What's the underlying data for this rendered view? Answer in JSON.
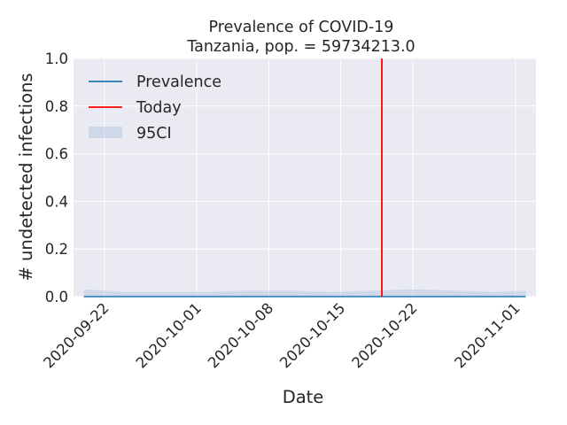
{
  "chart_data": {
    "type": "line",
    "title_line1": "Prevalence of COVID-19",
    "title_line2": "Tanzania, pop. = 59734213.0",
    "xlabel": "Date",
    "ylabel": "# undetected infections",
    "ylim": [
      0,
      1
    ],
    "yticks": [
      0.0,
      0.2,
      0.4,
      0.6,
      0.8,
      1.0
    ],
    "ytick_labels": [
      "0.0",
      "0.2",
      "0.4",
      "0.6",
      "0.8",
      "1.0"
    ],
    "xlim": [
      "2020-09-19",
      "2020-11-03"
    ],
    "xticks": [
      "2020-09-22",
      "2020-10-01",
      "2020-10-08",
      "2020-10-15",
      "2020-10-22",
      "2020-11-01"
    ],
    "xtick_labels": [
      "2020-09-22",
      "2020-10-01",
      "2020-10-08",
      "2020-10-15",
      "2020-10-22",
      "2020-11-01"
    ],
    "grid": true,
    "legend_position": "top-left",
    "series": [
      {
        "name": "Prevalence",
        "color": "#1f77b4",
        "x": [
          "2020-09-20",
          "2020-09-24",
          "2020-09-28",
          "2020-10-02",
          "2020-10-06",
          "2020-10-10",
          "2020-10-14",
          "2020-10-18",
          "2020-10-22",
          "2020-10-26",
          "2020-10-30",
          "2020-11-02"
        ],
        "y": [
          0.0,
          0.0,
          0.0,
          0.0,
          0.0,
          0.0,
          0.0,
          0.0,
          0.0,
          0.0,
          0.0,
          0.0
        ]
      }
    ],
    "today": {
      "name": "Today",
      "x": "2020-10-19",
      "color": "#ff0000"
    },
    "ci": {
      "name": "95CI",
      "color": "#b0c4de",
      "x": [
        "2020-09-20",
        "2020-09-24",
        "2020-09-28",
        "2020-10-02",
        "2020-10-06",
        "2020-10-10",
        "2020-10-14",
        "2020-10-18",
        "2020-10-22",
        "2020-10-26",
        "2020-10-30",
        "2020-11-02"
      ],
      "upper": [
        0.03,
        0.02,
        0.02,
        0.02,
        0.025,
        0.025,
        0.02,
        0.025,
        0.03,
        0.025,
        0.02,
        0.025
      ],
      "lower": [
        0.0,
        0.0,
        0.0,
        0.0,
        0.0,
        0.0,
        0.0,
        0.0,
        0.0,
        0.0,
        0.0,
        0.0
      ]
    }
  }
}
